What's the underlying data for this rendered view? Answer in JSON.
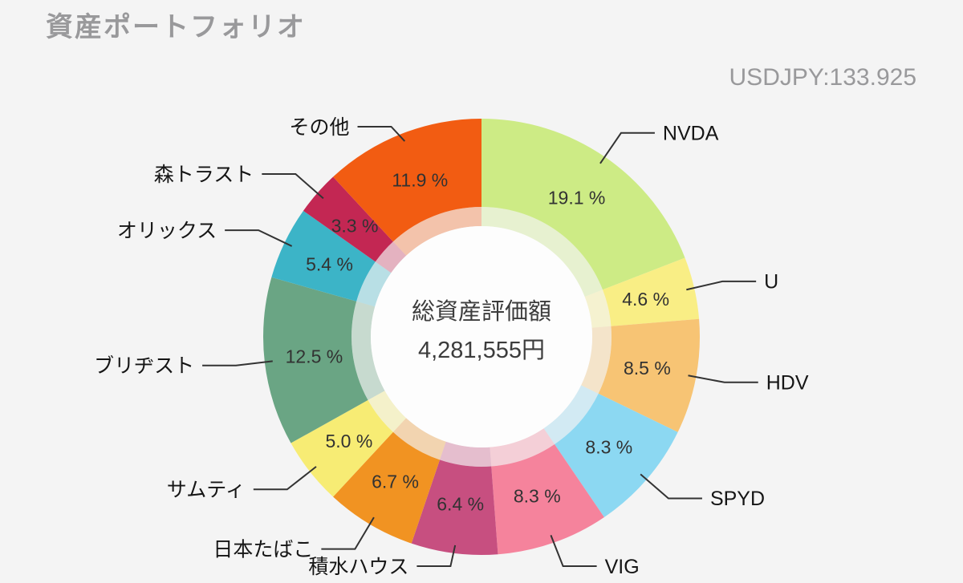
{
  "page": {
    "title": "資産ポートフォリオ",
    "exchange_rate": "USDJPY:133.925",
    "background": "#f4f4f4"
  },
  "chart_data": {
    "type": "pie",
    "subtype": "donut",
    "title": "資産ポートフォリオ",
    "direction": "clockwise",
    "start_angle_deg": 0,
    "legend_position": "none",
    "center_label": "総資産評価額",
    "center_value": "4,281,555円",
    "total_value_jpy": 4281555,
    "segments": [
      {
        "label": "NVDA",
        "value": 19.1,
        "percent_label": "19.1 %",
        "color": "#cdeb85"
      },
      {
        "label": "U",
        "value": 4.6,
        "percent_label": "4.6 %",
        "color": "#f9ee85"
      },
      {
        "label": "HDV",
        "value": 8.5,
        "percent_label": "8.5 %",
        "color": "#f7c474"
      },
      {
        "label": "SPYD",
        "value": 8.3,
        "percent_label": "8.3 %",
        "color": "#8cd8f2"
      },
      {
        "label": "VIG",
        "value": 8.3,
        "percent_label": "8.3 %",
        "color": "#f5839c"
      },
      {
        "label": "積水ハウス",
        "value": 6.4,
        "percent_label": "6.4 %",
        "color": "#c74f80"
      },
      {
        "label": "日本たばこ",
        "value": 6.7,
        "percent_label": "6.7 %",
        "color": "#f19322"
      },
      {
        "label": "サムティ",
        "value": 5.0,
        "percent_label": "5.0 %",
        "color": "#f7ec74"
      },
      {
        "label": "ブリヂスト",
        "value": 12.5,
        "percent_label": "12.5 %",
        "color": "#6aa584"
      },
      {
        "label": "オリックス",
        "value": 5.4,
        "percent_label": "5.4 %",
        "color": "#3cb4c7"
      },
      {
        "label": "森トラスト",
        "value": 3.3,
        "percent_label": "3.3 %",
        "color": "#c32753"
      },
      {
        "label": "その他",
        "value": 11.9,
        "percent_label": "11.9 %",
        "color": "#f25c12"
      }
    ]
  }
}
